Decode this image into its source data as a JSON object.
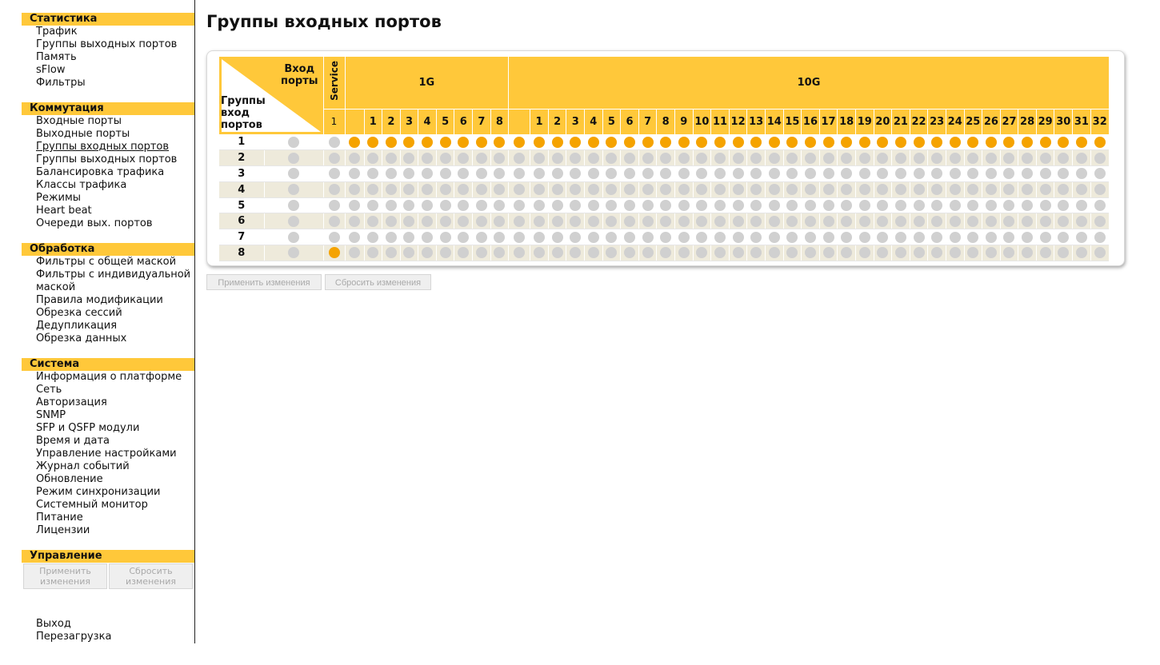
{
  "sidebar": {
    "sections": [
      {
        "title": "Статистика",
        "items": [
          "Трафик",
          "Группы выходных портов",
          "Память",
          "sFlow",
          "Фильтры"
        ]
      },
      {
        "title": "Коммутация",
        "items": [
          "Входные порты",
          "Выходные порты",
          "Группы входных портов",
          "Группы выходных портов",
          "Балансировка трафика",
          "Классы трафика",
          "Режимы",
          "Heart beat",
          "Очереди вых. портов"
        ]
      },
      {
        "title": "Обработка",
        "items": [
          "Фильтры с общей маской",
          "Фильтры с индивидуальной маской",
          "Правила модификации",
          "Обрезка сессий",
          "Дедупликация",
          "Обрезка данных"
        ]
      },
      {
        "title": "Система",
        "items": [
          "Информация о платформе",
          "Сеть",
          "Авторизация",
          "SNMP",
          "SFP и QSFP модули",
          "Время и дата",
          "Управление настройками",
          "Журнал событий",
          "Обновление",
          "Режим синхронизации",
          "Системный монитор",
          "Питание",
          "Лицензии"
        ]
      },
      {
        "title": "Управление",
        "items": []
      }
    ],
    "active_item": "Группы входных портов",
    "apply_label": "Применить изменения",
    "reset_label": "Сбросить изменения",
    "logout_label": "Выход",
    "reboot_label": "Перезагрузка"
  },
  "main": {
    "title": "Группы входных портов",
    "corner_top": "Вход\nпорты",
    "corner_bottom": "Группы\nвход\nпортов",
    "service_label": "Service",
    "group_1g_label": "1G",
    "group_10g_label": "10G",
    "service_ports": [
      "1"
    ],
    "ports_1g": [
      "1",
      "2",
      "3",
      "4",
      "5",
      "6",
      "7",
      "8"
    ],
    "ports_10g": [
      "1",
      "2",
      "3",
      "4",
      "5",
      "6",
      "7",
      "8",
      "9",
      "10",
      "11",
      "12",
      "13",
      "14",
      "15",
      "16",
      "17",
      "18",
      "19",
      "20",
      "21",
      "22",
      "23",
      "24",
      "25",
      "26",
      "27",
      "28",
      "29",
      "30",
      "31",
      "32"
    ],
    "groups": [
      {
        "name": "1",
        "service": [
          false
        ],
        "p1g": [
          true,
          true,
          true,
          true,
          true,
          true,
          true,
          true
        ],
        "p10g": [
          true,
          true,
          true,
          true,
          true,
          true,
          true,
          true,
          true,
          true,
          true,
          true,
          true,
          true,
          true,
          true,
          true,
          true,
          true,
          true,
          true,
          true,
          true,
          true,
          true,
          true,
          true,
          true,
          true,
          true,
          true,
          true
        ]
      },
      {
        "name": "2",
        "service": [
          false
        ],
        "p1g": [
          false,
          false,
          false,
          false,
          false,
          false,
          false,
          false
        ],
        "p10g": [
          false,
          false,
          false,
          false,
          false,
          false,
          false,
          false,
          false,
          false,
          false,
          false,
          false,
          false,
          false,
          false,
          false,
          false,
          false,
          false,
          false,
          false,
          false,
          false,
          false,
          false,
          false,
          false,
          false,
          false,
          false,
          false
        ]
      },
      {
        "name": "3",
        "service": [
          false
        ],
        "p1g": [
          false,
          false,
          false,
          false,
          false,
          false,
          false,
          false
        ],
        "p10g": [
          false,
          false,
          false,
          false,
          false,
          false,
          false,
          false,
          false,
          false,
          false,
          false,
          false,
          false,
          false,
          false,
          false,
          false,
          false,
          false,
          false,
          false,
          false,
          false,
          false,
          false,
          false,
          false,
          false,
          false,
          false,
          false
        ]
      },
      {
        "name": "4",
        "service": [
          false
        ],
        "p1g": [
          false,
          false,
          false,
          false,
          false,
          false,
          false,
          false
        ],
        "p10g": [
          false,
          false,
          false,
          false,
          false,
          false,
          false,
          false,
          false,
          false,
          false,
          false,
          false,
          false,
          false,
          false,
          false,
          false,
          false,
          false,
          false,
          false,
          false,
          false,
          false,
          false,
          false,
          false,
          false,
          false,
          false,
          false
        ]
      },
      {
        "name": "5",
        "service": [
          false
        ],
        "p1g": [
          false,
          false,
          false,
          false,
          false,
          false,
          false,
          false
        ],
        "p10g": [
          false,
          false,
          false,
          false,
          false,
          false,
          false,
          false,
          false,
          false,
          false,
          false,
          false,
          false,
          false,
          false,
          false,
          false,
          false,
          false,
          false,
          false,
          false,
          false,
          false,
          false,
          false,
          false,
          false,
          false,
          false,
          false
        ]
      },
      {
        "name": "6",
        "service": [
          false
        ],
        "p1g": [
          false,
          false,
          false,
          false,
          false,
          false,
          false,
          false
        ],
        "p10g": [
          false,
          false,
          false,
          false,
          false,
          false,
          false,
          false,
          false,
          false,
          false,
          false,
          false,
          false,
          false,
          false,
          false,
          false,
          false,
          false,
          false,
          false,
          false,
          false,
          false,
          false,
          false,
          false,
          false,
          false,
          false,
          false
        ]
      },
      {
        "name": "7",
        "service": [
          false
        ],
        "p1g": [
          false,
          false,
          false,
          false,
          false,
          false,
          false,
          false
        ],
        "p10g": [
          false,
          false,
          false,
          false,
          false,
          false,
          false,
          false,
          false,
          false,
          false,
          false,
          false,
          false,
          false,
          false,
          false,
          false,
          false,
          false,
          false,
          false,
          false,
          false,
          false,
          false,
          false,
          false,
          false,
          false,
          false,
          false
        ]
      },
      {
        "name": "8",
        "service": [
          true
        ],
        "p1g": [
          false,
          false,
          false,
          false,
          false,
          false,
          false,
          false
        ],
        "p10g": [
          false,
          false,
          false,
          false,
          false,
          false,
          false,
          false,
          false,
          false,
          false,
          false,
          false,
          false,
          false,
          false,
          false,
          false,
          false,
          false,
          false,
          false,
          false,
          false,
          false,
          false,
          false,
          false,
          false,
          false,
          false,
          false
        ]
      }
    ],
    "apply_label": "Применить изменения",
    "reset_label": "Сбросить изменения"
  },
  "colors": {
    "accent": "#ffc83a",
    "active_dot": "#f5a300",
    "inactive_dot": "#d0d0d0",
    "row_alt": "#eeeadb"
  },
  "icons": {
    "on": "orange-dot-icon",
    "off": "gray-dot-icon"
  }
}
